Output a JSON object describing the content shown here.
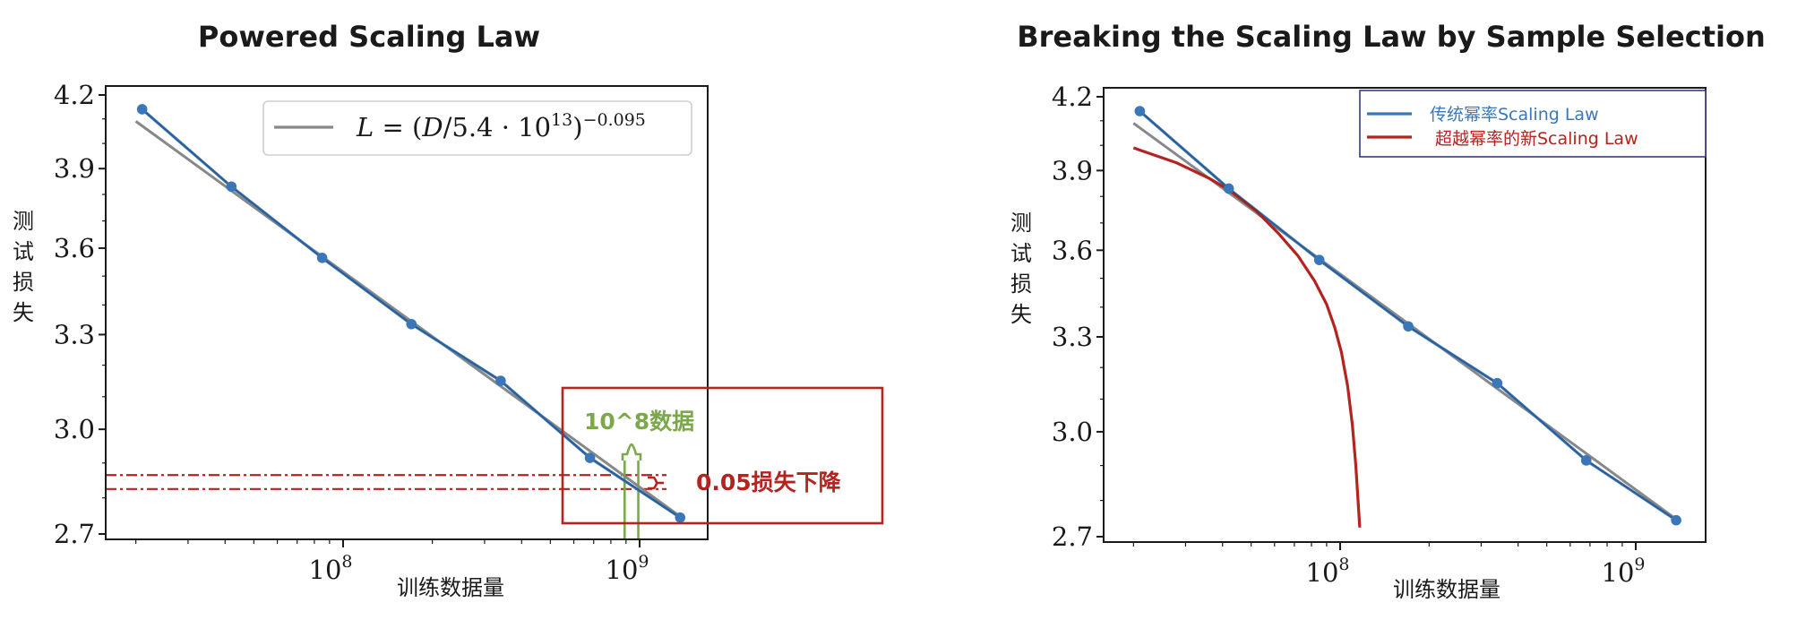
{
  "chart_data": [
    {
      "type": "line",
      "title": "Powered Scaling Law",
      "xlabel": "训练数据量",
      "ylabel": "测试损失",
      "x_scale": "log",
      "y_scale": "log",
      "xlim": [
        17000000,
        1700000000
      ],
      "ylim": [
        2.68,
        4.23
      ],
      "x_ticks": [
        {
          "value": 100000000,
          "base": "10",
          "exp": "8"
        },
        {
          "value": 1000000000,
          "base": "10",
          "exp": "9"
        }
      ],
      "y_ticks": [
        "2.7",
        "3.0",
        "3.3",
        "3.6",
        "3.9",
        "4.2"
      ],
      "series": [
        {
          "name": "",
          "color": "#3a77b8",
          "marker": "circle",
          "x": [
            21000000,
            42000000,
            85000000,
            170000000,
            340000000,
            680000000,
            1370000000
          ],
          "y": [
            4.14,
            3.83,
            3.565,
            3.335,
            3.15,
            2.915,
            2.745
          ]
        },
        {
          "name": "",
          "color": "#888888",
          "fit": "power-law",
          "x": [
            20000000,
            1370000000
          ],
          "y": [
            4.09,
            2.748
          ]
        }
      ],
      "legend": {
        "placement": "top-right",
        "entries": [
          {
            "label": "L = (D/5.4 · 10^13)^-0.095",
            "color": "#888888"
          }
        ]
      },
      "annotations": {
        "data_label": "10^8数据",
        "loss_label": "0.05损失下降",
        "ref_lines_y": [
          2.865,
          2.825
        ],
        "ref_lines_x": [
          890000000,
          990000000
        ]
      },
      "grid": false
    },
    {
      "type": "line",
      "title": "Breaking the Scaling Law by Sample Selection",
      "xlabel": "训练数据量",
      "ylabel": "测试损失",
      "x_scale": "log",
      "y_scale": "log",
      "xlim": [
        17000000,
        1700000000
      ],
      "ylim": [
        2.68,
        4.23
      ],
      "x_ticks": [
        {
          "value": 100000000,
          "base": "10",
          "exp": "8"
        },
        {
          "value": 1000000000,
          "base": "10",
          "exp": "9"
        }
      ],
      "y_ticks": [
        "2.7",
        "3.0",
        "3.3",
        "3.6",
        "3.9",
        "4.2"
      ],
      "series": [
        {
          "name": "传统幂率Scaling Law",
          "color": "#3a77b8",
          "marker": "circle",
          "x": [
            21000000,
            42000000,
            85000000,
            170000000,
            340000000,
            680000000,
            1370000000
          ],
          "y": [
            4.14,
            3.83,
            3.565,
            3.335,
            3.15,
            2.915,
            2.745
          ]
        },
        {
          "name": "",
          "color": "#888888",
          "fit": "power-law",
          "x": [
            20000000,
            1370000000
          ],
          "y": [
            4.09,
            2.748
          ]
        },
        {
          "name": "超越幂率的新Scaling Law",
          "color": "#b3231f",
          "x": [
            20000000,
            28000000,
            36000000,
            42000000,
            52000000,
            62000000,
            72000000,
            82000000,
            90000000,
            96000000,
            101000000,
            106000000,
            110000000,
            113000000,
            115000000,
            116500000
          ],
          "y": [
            3.99,
            3.93,
            3.87,
            3.825,
            3.745,
            3.66,
            3.58,
            3.49,
            3.41,
            3.33,
            3.25,
            3.14,
            3.02,
            2.9,
            2.8,
            2.725
          ]
        }
      ],
      "legend": {
        "placement": "top-right"
      },
      "grid": false
    }
  ]
}
